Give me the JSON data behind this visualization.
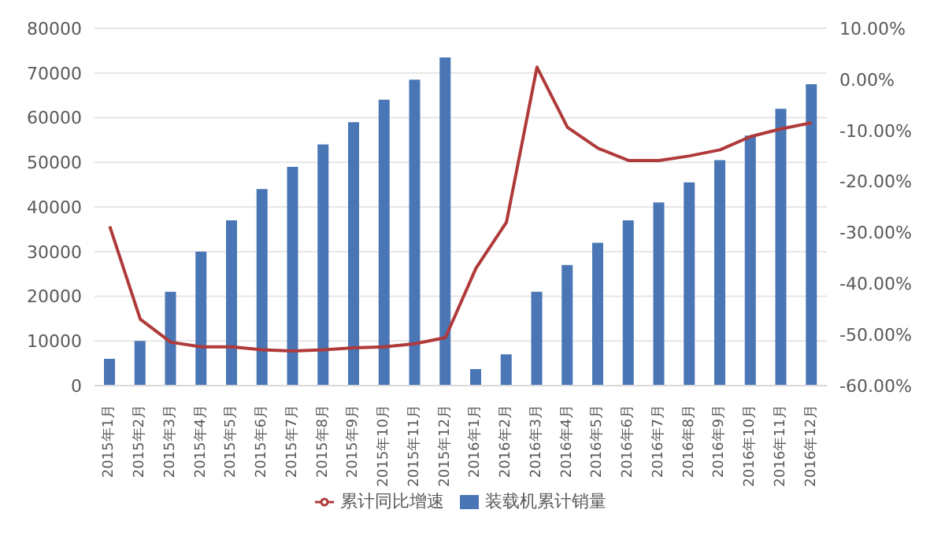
{
  "chart_data": {
    "type": "bar",
    "categories": [
      "2015年1月",
      "2015年2月",
      "2015年3月",
      "2015年4月",
      "2015年5月",
      "2015年6月",
      "2015年7月",
      "2015年8月",
      "2015年9月",
      "2015年10月",
      "2015年11月",
      "2015年12月",
      "2016年1月",
      "2016年2月",
      "2016年3月",
      "2016年4月",
      "2016年5月",
      "2016年6月",
      "2016年7月",
      "2016年8月",
      "2016年9月",
      "2016年10月",
      "2016年11月",
      "2016年12月"
    ],
    "series": [
      {
        "name": "装载机累计销量",
        "color": "#4a76b5",
        "values": [
          6000,
          10000,
          21000,
          30000,
          37000,
          44000,
          49000,
          54000,
          59000,
          64000,
          68500,
          73500,
          3700,
          7000,
          21000,
          27000,
          32000,
          37000,
          41000,
          45500,
          50500,
          56000,
          62000,
          67500
        ]
      },
      {
        "name": "累计同比增速",
        "type": "line",
        "axis": "y2",
        "color": "#b03a3a",
        "values": [
          -28.8,
          -47,
          -51.5,
          -52.4,
          -52.4,
          -53,
          -53.2,
          -53,
          -52.6,
          -52.4,
          -51.8,
          -50.6,
          -37,
          -28,
          2.4,
          -9.4,
          -13.5,
          -15.9,
          -15.9,
          -15,
          -13.8,
          -11.2,
          -9.7,
          -8.5
        ]
      }
    ],
    "ylim": [
      0,
      80000
    ],
    "yticks": [
      0,
      10000,
      20000,
      30000,
      40000,
      50000,
      60000,
      70000,
      80000
    ],
    "y2lim": [
      -60,
      10
    ],
    "y2ticks": [
      {
        "value": -60,
        "label": "-60.00%"
      },
      {
        "value": -50,
        "label": "-50.00%"
      },
      {
        "value": -40,
        "label": "-40.00%"
      },
      {
        "value": -30,
        "label": "-30.00%"
      },
      {
        "value": -20,
        "label": "-20.00%"
      },
      {
        "value": -10,
        "label": "-10.00%"
      },
      {
        "value": 0,
        "label": "0.00%"
      },
      {
        "value": 10,
        "label": "10.00%"
      }
    ],
    "grid": "y",
    "legend": "bottom",
    "marker": "none"
  }
}
